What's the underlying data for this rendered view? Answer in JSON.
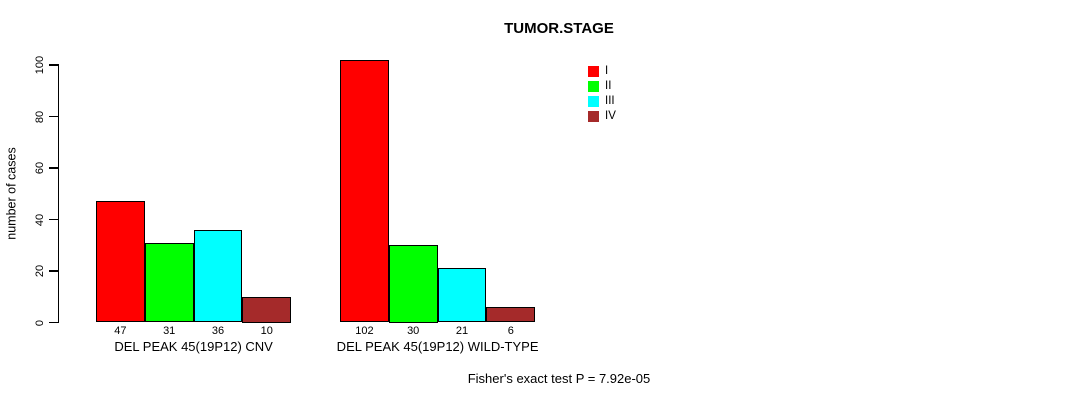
{
  "chart_data": {
    "type": "bar",
    "title": "TUMOR.STAGE",
    "ylabel": "number of cases",
    "xlabel": "",
    "ylim": [
      0,
      100
    ],
    "yticks": [
      0,
      20,
      40,
      60,
      80,
      100
    ],
    "grid": false,
    "legend_position": "top-right",
    "legend": [
      {
        "label": "I",
        "color": "#FF0000"
      },
      {
        "label": "II",
        "color": "#00FF00"
      },
      {
        "label": "III",
        "color": "#00FFFF"
      },
      {
        "label": "IV",
        "color": "#A52A2A"
      }
    ],
    "categories": [
      "DEL PEAK 45(19P12) CNV",
      "DEL PEAK 45(19P12) WILD-TYPE"
    ],
    "series": [
      {
        "name": "I",
        "values": [
          47,
          102
        ]
      },
      {
        "name": "II",
        "values": [
          31,
          30
        ]
      },
      {
        "name": "III",
        "values": [
          36,
          21
        ]
      },
      {
        "name": "IV",
        "values": [
          10,
          6
        ]
      }
    ],
    "show_bar_values": true,
    "footnote": "Fisher's exact test P = 7.92e-05"
  },
  "colors": {
    "axis": "#000000",
    "text": "#000000",
    "background": "#ffffff"
  }
}
